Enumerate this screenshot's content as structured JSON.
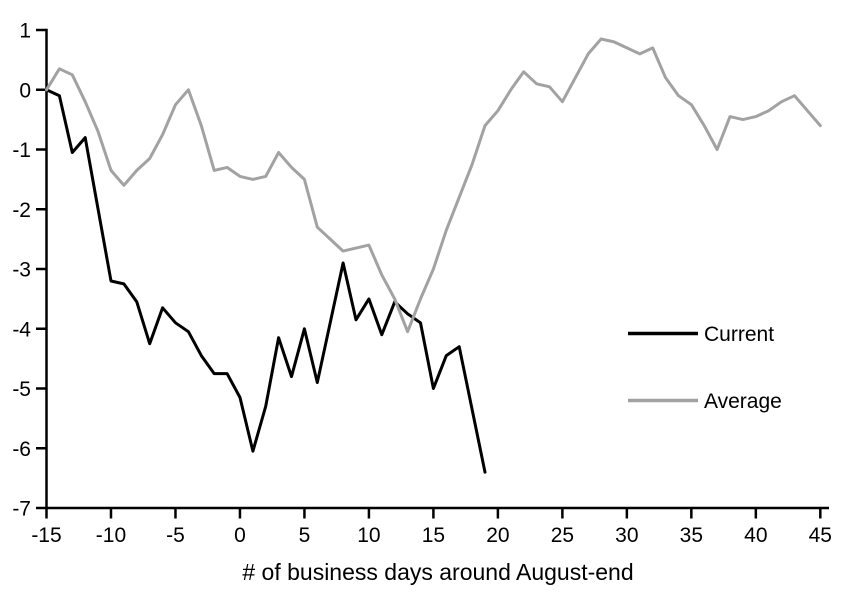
{
  "chart_data": {
    "type": "line",
    "title": "",
    "xlabel": "# of business days around August-end",
    "ylabel": "",
    "xlim": [
      -15,
      45
    ],
    "ylim": [
      -7,
      1
    ],
    "xticks": [
      -15,
      -10,
      -5,
      0,
      5,
      10,
      15,
      20,
      25,
      30,
      35,
      40,
      45
    ],
    "yticks": [
      1,
      0,
      -1,
      -2,
      -3,
      -4,
      -5,
      -6,
      -7
    ],
    "grid": false,
    "legend_position": "right-middle",
    "axis_color": "#000000",
    "series": [
      {
        "name": "Current",
        "color": "#000000",
        "stroke_width": 3,
        "x": [
          -15,
          -14,
          -13,
          -12,
          -11,
          -10,
          -9,
          -8,
          -7,
          -6,
          -5,
          -4,
          -3,
          -2,
          -1,
          0,
          1,
          2,
          3,
          4,
          5,
          6,
          7,
          8,
          9,
          10,
          11,
          12,
          13,
          14,
          15,
          16,
          17,
          18,
          19
        ],
        "y": [
          0,
          -0.1,
          -1.05,
          -0.8,
          -2.0,
          -3.2,
          -3.25,
          -3.55,
          -4.25,
          -3.65,
          -3.9,
          -4.05,
          -4.45,
          -4.75,
          -4.75,
          -5.15,
          -6.05,
          -5.3,
          -4.15,
          -4.8,
          -4.0,
          -4.9,
          -3.9,
          -2.9,
          -3.85,
          -3.5,
          -4.1,
          -3.55,
          -3.75,
          -3.9,
          -5.0,
          -4.45,
          -4.3,
          -5.35,
          -6.4
        ]
      },
      {
        "name": "Average",
        "color": "#a2a2a2",
        "stroke_width": 3,
        "x": [
          -15,
          -14,
          -13,
          -12,
          -11,
          -10,
          -9,
          -8,
          -7,
          -6,
          -5,
          -4,
          -3,
          -2,
          -1,
          0,
          1,
          2,
          3,
          4,
          5,
          6,
          7,
          8,
          9,
          10,
          11,
          12,
          13,
          14,
          15,
          16,
          17,
          18,
          19,
          20,
          21,
          22,
          23,
          24,
          25,
          26,
          27,
          28,
          29,
          30,
          31,
          32,
          33,
          34,
          35,
          36,
          37,
          38,
          39,
          40,
          41,
          42,
          43,
          44,
          45
        ],
        "y": [
          0,
          0.35,
          0.25,
          -0.2,
          -0.7,
          -1.35,
          -1.6,
          -1.35,
          -1.15,
          -0.75,
          -0.25,
          0,
          -0.6,
          -1.35,
          -1.3,
          -1.45,
          -1.5,
          -1.45,
          -1.05,
          -1.3,
          -1.5,
          -2.3,
          -2.5,
          -2.7,
          -2.65,
          -2.6,
          -3.1,
          -3.5,
          -4.05,
          -3.5,
          -3.0,
          -2.35,
          -1.8,
          -1.25,
          -0.6,
          -0.35,
          0.0,
          0.3,
          0.1,
          0.05,
          -0.2,
          0.2,
          0.6,
          0.85,
          0.8,
          0.7,
          0.6,
          0.7,
          0.2,
          -0.1,
          -0.25,
          -0.6,
          -1.0,
          -0.45,
          -0.5,
          -0.45,
          -0.35,
          -0.2,
          -0.1,
          -0.35,
          -0.6
        ]
      }
    ]
  }
}
